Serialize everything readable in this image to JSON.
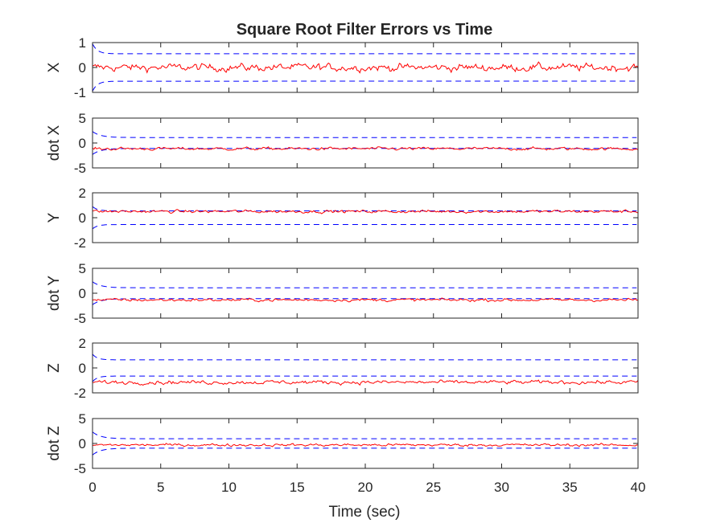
{
  "chart_data": {
    "type": "line",
    "title": "Square Root Filter Errors vs Time",
    "xlabel": "Time (sec)",
    "xlim": [
      0,
      40
    ],
    "xticks": [
      0,
      5,
      10,
      15,
      20,
      25,
      30,
      35,
      40
    ],
    "xtick_labels": [
      "0",
      "5",
      "10",
      "15",
      "20",
      "25",
      "30",
      "35",
      "40"
    ],
    "grid": false,
    "colors": {
      "error": "#ff0000",
      "bound": "#0000ff",
      "axes": "#262626"
    },
    "subplots": [
      {
        "ylabel": "X",
        "ylim": [
          -1,
          1
        ],
        "yticks": [
          -1,
          0,
          1
        ],
        "ytick_labels": [
          "-1",
          "0",
          "1"
        ],
        "bound": {
          "initial": 0.95,
          "steady": 0.55,
          "tau": 0.35
        },
        "error": {
          "offset": 0.0,
          "noise": 0.13
        }
      },
      {
        "ylabel": "dot X",
        "ylim": [
          -5,
          5
        ],
        "yticks": [
          -5,
          0,
          5
        ],
        "ytick_labels": [
          "-5",
          "0",
          "5"
        ],
        "bound": {
          "initial": 2.3,
          "steady": 1.1,
          "tau": 0.6
        },
        "error": {
          "offset": -1.15,
          "noise": 0.25
        }
      },
      {
        "ylabel": "Y",
        "ylim": [
          -2,
          2
        ],
        "yticks": [
          -2,
          0,
          2
        ],
        "ytick_labels": [
          "-2",
          "0",
          "2"
        ],
        "bound": {
          "initial": 0.9,
          "steady": 0.55,
          "tau": 0.35
        },
        "error": {
          "offset": 0.5,
          "noise": 0.1
        }
      },
      {
        "ylabel": "dot Y",
        "ylim": [
          -5,
          5
        ],
        "yticks": [
          -5,
          0,
          5
        ],
        "ytick_labels": [
          "-5",
          "0",
          "5"
        ],
        "bound": {
          "initial": 2.3,
          "steady": 1.1,
          "tau": 0.6
        },
        "error": {
          "offset": -1.35,
          "noise": 0.25
        }
      },
      {
        "ylabel": "Z",
        "ylim": [
          -2,
          2
        ],
        "yticks": [
          -2,
          0,
          2
        ],
        "ytick_labels": [
          "-2",
          "0",
          "2"
        ],
        "bound": {
          "initial": 1.1,
          "steady": 0.65,
          "tau": 0.35
        },
        "error": {
          "offset": -1.15,
          "noise": 0.13
        }
      },
      {
        "ylabel": "dot Z",
        "ylim": [
          -5,
          5
        ],
        "yticks": [
          -5,
          0,
          5
        ],
        "ytick_labels": [
          "-5",
          "0",
          "5"
        ],
        "bound": {
          "initial": 2.3,
          "steady": 0.95,
          "tau": 0.6
        },
        "error": {
          "offset": -0.3,
          "noise": 0.22
        }
      }
    ]
  }
}
